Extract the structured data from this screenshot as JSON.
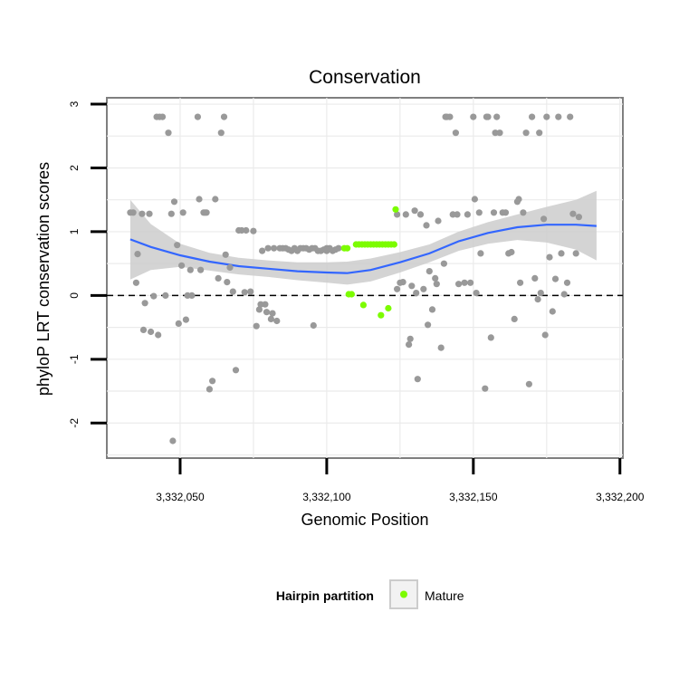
{
  "chart_data": {
    "type": "scatter",
    "title": "Conservation",
    "xlabel": "Genomic Position",
    "ylabel": "phyloP LRT conservation scores",
    "xlim": [
      3332025,
      3332201
    ],
    "ylim": [
      -2.55,
      3.1
    ],
    "xticks": [
      3332050,
      3332100,
      3332150,
      3332200
    ],
    "xtick_labels": [
      "3,332,050",
      "3,332,100",
      "3,332,150",
      "3,332,200"
    ],
    "yticks": [
      -2,
      -1,
      0,
      1,
      2,
      3
    ],
    "ytick_labels": [
      "-2",
      "-1",
      "0",
      "1",
      "2",
      "3"
    ],
    "grid": true,
    "hline": 0,
    "legend": {
      "title": "Hairpin partition",
      "position": "bottom",
      "entries": [
        {
          "label": "Mature",
          "color": "#7cfc00"
        }
      ]
    },
    "colors": {
      "other": "#999999",
      "mature": "#7cfc00",
      "smooth": "#3366ff",
      "band": "#cccccc",
      "panel": "#ffffff",
      "grid": "#ebebeb",
      "frame": "#7f7f7f"
    },
    "smooth": {
      "x": [
        3332033,
        3332040,
        3332050,
        3332060,
        3332070,
        3332080,
        3332090,
        3332100,
        3332107,
        3332115,
        3332125,
        3332135,
        3332145,
        3332155,
        3332165,
        3332175,
        3332185,
        3332192
      ],
      "y": [
        0.88,
        0.76,
        0.63,
        0.53,
        0.46,
        0.42,
        0.38,
        0.36,
        0.35,
        0.4,
        0.52,
        0.66,
        0.85,
        0.98,
        1.07,
        1.11,
        1.11,
        1.09
      ],
      "lower": [
        0.25,
        0.4,
        0.45,
        0.39,
        0.33,
        0.29,
        0.24,
        0.2,
        0.17,
        0.22,
        0.36,
        0.52,
        0.7,
        0.81,
        0.87,
        0.83,
        0.72,
        0.55
      ],
      "upper": [
        1.5,
        1.12,
        0.81,
        0.67,
        0.59,
        0.55,
        0.52,
        0.52,
        0.53,
        0.58,
        0.68,
        0.8,
        1.0,
        1.15,
        1.27,
        1.39,
        1.5,
        1.64
      ]
    },
    "series": [
      {
        "name": "Mature",
        "points": [
          [
            3332106,
            0.74
          ],
          [
            3332107,
            0.74
          ],
          [
            3332107.5,
            0.02
          ],
          [
            3332108.5,
            0.02
          ],
          [
            3332110,
            0.8
          ],
          [
            3332111,
            0.8
          ],
          [
            3332112,
            0.8
          ],
          [
            3332112.5,
            -0.15
          ],
          [
            3332113,
            0.8
          ],
          [
            3332114,
            0.8
          ],
          [
            3332115,
            0.8
          ],
          [
            3332116,
            0.8
          ],
          [
            3332117,
            0.8
          ],
          [
            3332118,
            0.8
          ],
          [
            3332118.5,
            -0.31
          ],
          [
            3332119,
            0.8
          ],
          [
            3332120,
            0.8
          ],
          [
            3332121,
            0.8
          ],
          [
            3332121,
            -0.2
          ],
          [
            3332122,
            0.8
          ],
          [
            3332123,
            0.8
          ],
          [
            3332123.5,
            1.35
          ]
        ]
      },
      {
        "name": "",
        "points": [
          [
            3332033,
            1.3
          ],
          [
            3332034,
            1.3
          ],
          [
            3332035,
            0.2
          ],
          [
            3332035.5,
            0.65
          ],
          [
            3332037,
            1.28
          ],
          [
            3332037.5,
            -0.54
          ],
          [
            3332038,
            -0.12
          ],
          [
            3332039.5,
            1.28
          ],
          [
            3332040,
            -0.57
          ],
          [
            3332041,
            -0.01
          ],
          [
            3332042,
            2.8
          ],
          [
            3332042.5,
            -0.62
          ],
          [
            3332043,
            2.8
          ],
          [
            3332044,
            2.8
          ],
          [
            3332045,
            0.0
          ],
          [
            3332046,
            2.55
          ],
          [
            3332047,
            1.28
          ],
          [
            3332047.5,
            -2.28
          ],
          [
            3332048,
            1.47
          ],
          [
            3332049,
            0.79
          ],
          [
            3332049.5,
            -0.44
          ],
          [
            3332050.5,
            0.47
          ],
          [
            3332051,
            1.3
          ],
          [
            3332052,
            -0.38
          ],
          [
            3332052.5,
            0.0
          ],
          [
            3332053.5,
            0.4
          ],
          [
            3332054,
            0.0
          ],
          [
            3332056,
            2.8
          ],
          [
            3332056.5,
            1.51
          ],
          [
            3332057,
            0.4
          ],
          [
            3332058,
            1.3
          ],
          [
            3332058.5,
            1.3
          ],
          [
            3332059,
            1.3
          ],
          [
            3332060,
            -1.47
          ],
          [
            3332061,
            -1.34
          ],
          [
            3332062,
            1.51
          ],
          [
            3332063,
            0.27
          ],
          [
            3332064,
            2.55
          ],
          [
            3332065,
            2.8
          ],
          [
            3332065.5,
            0.64
          ],
          [
            3332066,
            0.21
          ],
          [
            3332067,
            0.44
          ],
          [
            3332068,
            0.06
          ],
          [
            3332069,
            -1.17
          ],
          [
            3332070,
            1.02
          ],
          [
            3332071,
            1.02
          ],
          [
            3332072,
            0.05
          ],
          [
            3332072.5,
            1.02
          ],
          [
            3332074,
            0.06
          ],
          [
            3332075,
            1.01
          ],
          [
            3332076,
            -0.48
          ],
          [
            3332077,
            -0.22
          ],
          [
            3332077.5,
            -0.14
          ],
          [
            3332078,
            0.7
          ],
          [
            3332079,
            -0.14
          ],
          [
            3332079.5,
            -0.26
          ],
          [
            3332080,
            0.74
          ],
          [
            3332081,
            -0.37
          ],
          [
            3332081.5,
            -0.28
          ],
          [
            3332082,
            0.74
          ],
          [
            3332083,
            -0.4
          ],
          [
            3332084,
            0.74
          ],
          [
            3332085,
            0.74
          ],
          [
            3332086,
            0.74
          ],
          [
            3332087,
            0.72
          ],
          [
            3332088,
            0.7
          ],
          [
            3332089,
            0.74
          ],
          [
            3332090,
            0.7
          ],
          [
            3332091,
            0.74
          ],
          [
            3332092,
            0.74
          ],
          [
            3332093,
            0.74
          ],
          [
            3332094,
            0.72
          ],
          [
            3332095,
            0.74
          ],
          [
            3332095.5,
            -0.47
          ],
          [
            3332096,
            0.74
          ],
          [
            3332097,
            0.7
          ],
          [
            3332098,
            0.7
          ],
          [
            3332099,
            0.72
          ],
          [
            3332100,
            0.74
          ],
          [
            3332100,
            0.7
          ],
          [
            3332101,
            0.74
          ],
          [
            3332102,
            0.7
          ],
          [
            3332103,
            0.72
          ],
          [
            3332104,
            0.74
          ],
          [
            3332124,
            1.27
          ],
          [
            3332124,
            0.1
          ],
          [
            3332125,
            0.2
          ],
          [
            3332126,
            0.21
          ],
          [
            3332127,
            1.27
          ],
          [
            3332128,
            -0.77
          ],
          [
            3332128.5,
            -0.68
          ],
          [
            3332129,
            0.15
          ],
          [
            3332130,
            1.33
          ],
          [
            3332130.5,
            0.04
          ],
          [
            3332131,
            -1.31
          ],
          [
            3332132,
            1.27
          ],
          [
            3332133,
            0.1
          ],
          [
            3332134,
            1.1
          ],
          [
            3332134.5,
            -0.46
          ],
          [
            3332135,
            0.38
          ],
          [
            3332136,
            -0.22
          ],
          [
            3332137,
            0.27
          ],
          [
            3332137.5,
            0.18
          ],
          [
            3332138,
            1.17
          ],
          [
            3332139,
            -0.82
          ],
          [
            3332140,
            0.5
          ],
          [
            3332140.5,
            2.8
          ],
          [
            3332141,
            2.8
          ],
          [
            3332142,
            2.8
          ],
          [
            3332143,
            1.27
          ],
          [
            3332144,
            2.55
          ],
          [
            3332144.5,
            1.27
          ],
          [
            3332145,
            0.18
          ],
          [
            3332147,
            0.2
          ],
          [
            3332148,
            1.27
          ],
          [
            3332149,
            0.2
          ],
          [
            3332150,
            2.8
          ],
          [
            3332150.5,
            1.51
          ],
          [
            3332151,
            0.04
          ],
          [
            3332152,
            1.3
          ],
          [
            3332152.5,
            0.66
          ],
          [
            3332154,
            -1.46
          ],
          [
            3332154.5,
            2.8
          ],
          [
            3332155,
            2.8
          ],
          [
            3332156,
            -0.66
          ],
          [
            3332157,
            1.3
          ],
          [
            3332157.5,
            2.55
          ],
          [
            3332158,
            2.8
          ],
          [
            3332159,
            2.55
          ],
          [
            3332160,
            1.3
          ],
          [
            3332161,
            1.3
          ],
          [
            3332162,
            0.66
          ],
          [
            3332163,
            0.68
          ],
          [
            3332164,
            -0.37
          ],
          [
            3332165,
            1.47
          ],
          [
            3332165.5,
            1.51
          ],
          [
            3332166,
            0.2
          ],
          [
            3332167,
            1.3
          ],
          [
            3332168,
            2.55
          ],
          [
            3332169,
            -1.39
          ],
          [
            3332170,
            2.8
          ],
          [
            3332171,
            0.27
          ],
          [
            3332172,
            -0.06
          ],
          [
            3332172.5,
            2.55
          ],
          [
            3332173,
            0.04
          ],
          [
            3332174,
            1.2
          ],
          [
            3332174.5,
            -0.62
          ],
          [
            3332175,
            2.8
          ],
          [
            3332176,
            0.6
          ],
          [
            3332177,
            -0.25
          ],
          [
            3332178,
            0.26
          ],
          [
            3332179,
            2.8
          ],
          [
            3332180,
            0.66
          ],
          [
            3332181,
            0.02
          ],
          [
            3332182,
            0.2
          ],
          [
            3332183,
            2.8
          ],
          [
            3332184,
            1.28
          ],
          [
            3332185,
            0.66
          ],
          [
            3332186,
            1.23
          ]
        ]
      }
    ]
  }
}
